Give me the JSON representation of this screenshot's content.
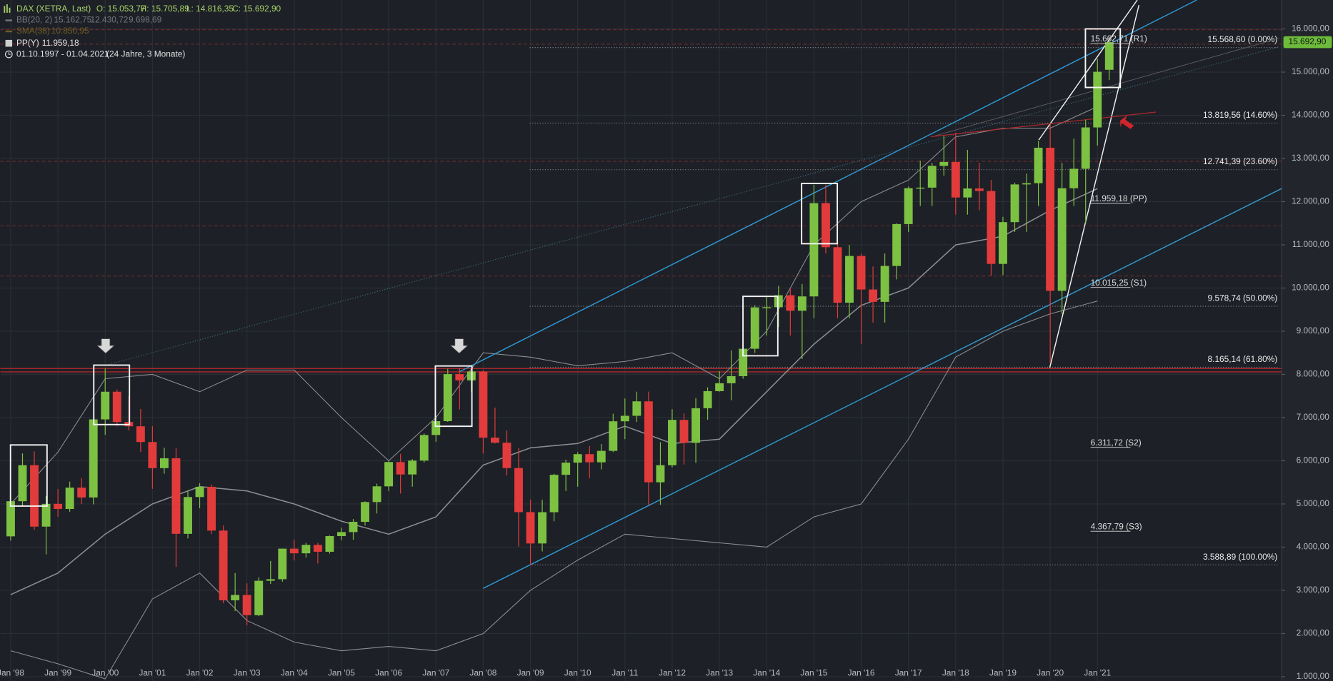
{
  "chart_data": {
    "type": "candlestick",
    "title": "DAX (XETRA, Last)",
    "ohlc_labels": [
      "O: 15.053,77",
      "H: 15.705,89",
      "L: 14.816,35",
      "C: 15.692,90"
    ],
    "legend": {
      "bb_name": "BB(20, 2)",
      "bb_values": [
        "15.162,75",
        "12.430,72",
        "9.698,69"
      ],
      "sma_name": "SMA(38)",
      "sma_value": "10.850,95",
      "pp_name": "PP(Y)",
      "pp_value": "11.959,18",
      "range": "01.10.1997 - 01.04.2021",
      "duration": "(24 Jahre, 3 Monate)"
    },
    "up_color": "#7dc143",
    "down_color": "#e23b3b",
    "x": [
      1998,
      1998.25,
      1998.5,
      1998.75,
      1999,
      1999.25,
      1999.5,
      1999.75,
      2000,
      2000.25,
      2000.5,
      2000.75,
      2001,
      2001.25,
      2001.5,
      2001.75,
      2002,
      2002.25,
      2002.5,
      2002.75,
      2003,
      2003.25,
      2003.5,
      2003.75,
      2004,
      2004.25,
      2004.5,
      2004.75,
      2005,
      2005.25,
      2005.5,
      2005.75,
      2006,
      2006.25,
      2006.5,
      2006.75,
      2007,
      2007.25,
      2007.5,
      2007.75,
      2008,
      2008.25,
      2008.5,
      2008.75,
      2009,
      2009.25,
      2009.5,
      2009.75,
      2010,
      2010.25,
      2010.5,
      2010.75,
      2011,
      2011.25,
      2011.5,
      2011.75,
      2012,
      2012.25,
      2012.5,
      2012.75,
      2013,
      2013.25,
      2013.5,
      2013.75,
      2014,
      2014.25,
      2014.5,
      2014.75,
      2015,
      2015.25,
      2015.5,
      2015.75,
      2016,
      2016.25,
      2016.5,
      2016.75,
      2017,
      2017.25,
      2017.5,
      2017.75,
      2018,
      2018.25,
      2018.5,
      2018.75,
      2019,
      2019.25,
      2019.5,
      2019.75,
      2020,
      2020.25,
      2020.5,
      2020.75,
      2021,
      2021.25
    ],
    "open": [
      4250,
      5063,
      5897,
      4475,
      5002,
      4884,
      5378,
      5150,
      6958,
      7599,
      6898,
      6798,
      6434,
      5829,
      6058,
      4308,
      5160,
      5397,
      4383,
      2769,
      2893,
      2424,
      3221,
      3257,
      3965,
      3857,
      4052,
      3893,
      4256,
      4349,
      4586,
      5044,
      5408,
      5970,
      5683,
      6004,
      6597,
      6917,
      8007,
      7862,
      8067,
      6535,
      6418,
      5831,
      4810,
      4085,
      4809,
      5675,
      5957,
      6153,
      5965,
      6229,
      6914,
      7041,
      7376,
      5502,
      5898,
      6947,
      6416,
      7216,
      7612,
      7795,
      7959,
      8594,
      9552,
      9556,
      9833,
      9474,
      9806,
      11966,
      10945,
      9660,
      10743,
      9966,
      9680,
      10511,
      11481,
      12313,
      12325,
      12829,
      12918,
      12097,
      12306,
      12247,
      10559,
      11526,
      12399,
      12428,
      13249,
      9936,
      12311,
      12761,
      13719,
      15053.77
    ],
    "high": [
      5100,
      6171,
      6217,
      5181,
      5345,
      5519,
      5600,
      6958,
      8136,
      7650,
      7500,
      7200,
      6800,
      6300,
      6300,
      5300,
      5480,
      5450,
      4500,
      3400,
      3160,
      3300,
      3680,
      3965,
      4175,
      4100,
      4100,
      4270,
      4450,
      4650,
      5060,
      5470,
      5990,
      6160,
      6040,
      6630,
      7040,
      8131,
      8150,
      8152,
      8100,
      7230,
      6700,
      6300,
      5100,
      5100,
      5700,
      6026,
      6200,
      6340,
      6390,
      7090,
      7441,
      7600,
      7600,
      6430,
      7194,
      7100,
      7450,
      7700,
      8074,
      8557,
      8700,
      9600,
      9800,
      10050,
      10000,
      10093,
      12391,
      12390,
      11800,
      11000,
      10800,
      10500,
      10800,
      11500,
      12350,
      12951,
      12900,
      13525,
      13597,
      13200,
      12900,
      12500,
      11650,
      12440,
      12650,
      13400,
      13795,
      12900,
      13460,
      13900,
      15300,
      15705.89
    ],
    "low": [
      4150,
      4940,
      4400,
      3833,
      4700,
      4820,
      5000,
      4990,
      6600,
      6800,
      6700,
      6200,
      5350,
      5700,
      3540,
      4200,
      4900,
      4300,
      2700,
      2520,
      2188,
      2400,
      3150,
      3200,
      3690,
      3760,
      3620,
      3850,
      4160,
      4170,
      4500,
      4780,
      5300,
      5240,
      5400,
      5960,
      6440,
      6900,
      7190,
      7585,
      6167,
      6400,
      5660,
      4014,
      3588,
      3900,
      4600,
      5300,
      5400,
      5600,
      5800,
      6200,
      6500,
      6900,
      4965,
      4980,
      5850,
      5914,
      5950,
      6950,
      7600,
      7400,
      7900,
      8500,
      8900,
      9100,
      8900,
      8355,
      9300,
      10800,
      9300,
      9300,
      8700,
      9200,
      9200,
      10200,
      11300,
      11900,
      11900,
      12600,
      11700,
      11700,
      11800,
      10280,
      10300,
      11300,
      11300,
      11900,
      8256,
      9400,
      11900,
      11500,
      13300,
      14816.35
    ],
    "close": [
      5063,
      5897,
      4475,
      5002,
      4884,
      5378,
      5150,
      6958,
      7599,
      6898,
      6798,
      6434,
      5829,
      6058,
      4308,
      5160,
      5397,
      4383,
      2769,
      2893,
      2424,
      3221,
      3257,
      3965,
      3857,
      4052,
      3893,
      4256,
      4349,
      4586,
      5044,
      5408,
      5970,
      5683,
      6004,
      6597,
      6917,
      8007,
      7862,
      8067,
      6535,
      6418,
      5831,
      4810,
      4085,
      4809,
      5675,
      5957,
      6153,
      5965,
      6229,
      6914,
      7041,
      7376,
      5502,
      5898,
      6947,
      6416,
      7216,
      7612,
      7795,
      7959,
      8594,
      9552,
      9556,
      9833,
      9474,
      9806,
      11966,
      10945,
      9660,
      10743,
      9966,
      9680,
      10511,
      11481,
      12313,
      12325,
      12829,
      12918,
      12097,
      12306,
      12247,
      10559,
      11526,
      12399,
      12428,
      13249,
      9936,
      12311,
      12761,
      13719,
      15008,
      15692.9
    ],
    "indicator": {
      "color": "#8b8e93",
      "x": [
        1998,
        1999,
        2000,
        2001,
        2002,
        2003,
        2004,
        2005,
        2006,
        2007,
        2008,
        2009,
        2010,
        2011,
        2012,
        2013,
        2014,
        2015,
        2016,
        2017,
        2018,
        2019,
        2020,
        2021
      ],
      "upper": [
        5000,
        6200,
        7900,
        8000,
        7600,
        8100,
        8100,
        7000,
        6000,
        7000,
        8500,
        8400,
        8200,
        8300,
        8500,
        7900,
        9000,
        11000,
        12000,
        12500,
        13500,
        13700,
        13700,
        14200
      ],
      "middle": [
        2900,
        3400,
        4300,
        5000,
        5400,
        5300,
        5000,
        4600,
        4300,
        4700,
        5900,
        6300,
        6400,
        6800,
        6400,
        6500,
        7600,
        8700,
        9600,
        10000,
        11000,
        11200,
        11800,
        12300
      ],
      "lower": [
        1600,
        1300,
        950,
        2800,
        3400,
        2300,
        1800,
        1600,
        1700,
        1600,
        2000,
        3000,
        3700,
        4300,
        4200,
        4100,
        4000,
        4700,
        5000,
        6500,
        8400,
        9000,
        9400,
        9700
      ]
    },
    "fibonacci": [
      {
        "value": 15568.6,
        "label": "15.568,60 (0.00%)"
      },
      {
        "value": 13819.56,
        "label": "13.819,56 (14.60%)"
      },
      {
        "value": 12741.39,
        "label": "12.741,39 (23.60%)"
      },
      {
        "value": 9578.74,
        "label": "9.578,74 (50.00%)"
      },
      {
        "value": 8165.14,
        "label": "8.165,14 (61.80%)"
      },
      {
        "value": 3588.89,
        "label": "3.588,89 (100.00%)"
      }
    ],
    "pivots": [
      {
        "value": 15662.71,
        "label": "15.662,71 (R1)"
      },
      {
        "value": 11959.18,
        "label": "11.959,18 (PP)"
      },
      {
        "value": 10015.25,
        "label": "10.015,25 (S1)"
      },
      {
        "value": 6311.72,
        "label": "6.311,72 (S2)"
      },
      {
        "value": 4367.79,
        "label": "4.367,79 (S3)"
      }
    ],
    "last_price": {
      "value": 15692.9,
      "label": "15.692,90"
    },
    "xlim": [
      1997.78,
      2024.9
    ],
    "xticks": [
      {
        "value": 1998,
        "label": "Jan '98"
      },
      {
        "value": 1999,
        "label": "Jan '99"
      },
      {
        "value": 2000,
        "label": "Jan '00"
      },
      {
        "value": 2001,
        "label": "Jan '01"
      },
      {
        "value": 2002,
        "label": "Jan '02"
      },
      {
        "value": 2003,
        "label": "Jan '03"
      },
      {
        "value": 2004,
        "label": "Jan '04"
      },
      {
        "value": 2005,
        "label": "Jan '05"
      },
      {
        "value": 2006,
        "label": "Jan '06"
      },
      {
        "value": 2007,
        "label": "Jan '07"
      },
      {
        "value": 2008,
        "label": "Jan '08"
      },
      {
        "value": 2009,
        "label": "Jan '09"
      },
      {
        "value": 2010,
        "label": "Jan '10"
      },
      {
        "value": 2011,
        "label": "Jan '11"
      },
      {
        "value": 2012,
        "label": "Jan '12"
      },
      {
        "value": 2013,
        "label": "Jan '13"
      },
      {
        "value": 2014,
        "label": "Jan '14"
      },
      {
        "value": 2015,
        "label": "Jan '15"
      },
      {
        "value": 2016,
        "label": "Jan '16"
      },
      {
        "value": 2017,
        "label": "Jan '17"
      },
      {
        "value": 2018,
        "label": "Jan '18"
      },
      {
        "value": 2019,
        "label": "Jan '19"
      },
      {
        "value": 2020,
        "label": "Jan '20"
      },
      {
        "value": 2021,
        "label": "Jan '21"
      }
    ],
    "ylim": [
      900,
      16670
    ],
    "yticks": [
      {
        "value": 1000,
        "label": "1.000,00"
      },
      {
        "value": 2000,
        "label": "2.000,00"
      },
      {
        "value": 3000,
        "label": "3.000,00"
      },
      {
        "value": 4000,
        "label": "4.000,00"
      },
      {
        "value": 5000,
        "label": "5.000,00"
      },
      {
        "value": 6000,
        "label": "6.000,00"
      },
      {
        "value": 7000,
        "label": "7.000,00"
      },
      {
        "value": 8000,
        "label": "8.000,00"
      },
      {
        "value": 9000,
        "label": "9.000,00"
      },
      {
        "value": 10000,
        "label": "10.000,00"
      },
      {
        "value": 11000,
        "label": "11.000,00"
      },
      {
        "value": 12000,
        "label": "12.000,00"
      },
      {
        "value": 13000,
        "label": "13.000,00"
      },
      {
        "value": 14000,
        "label": "14.000,00"
      },
      {
        "value": 15000,
        "label": "15.000,00"
      },
      {
        "value": 16000,
        "label": "16.000,00"
      }
    ],
    "grid": true
  }
}
